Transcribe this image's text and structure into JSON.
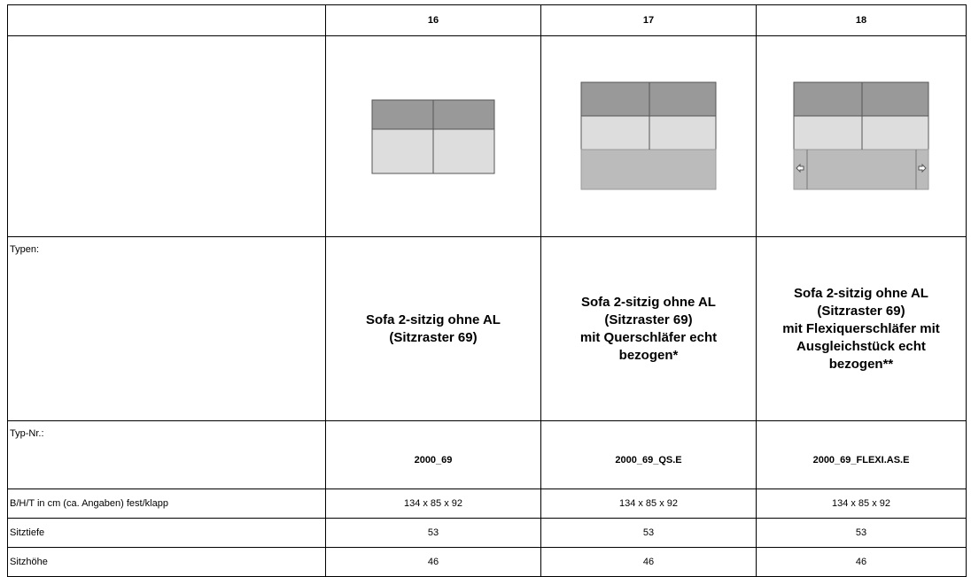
{
  "table": {
    "columns": [
      "16",
      "17",
      "18"
    ],
    "types_label": "Typen:",
    "types": [
      [
        "Sofa 2-sitzig ohne AL",
        "(Sitzraster 69)"
      ],
      [
        "Sofa 2-sitzig ohne AL",
        "(Sitzraster 69)",
        "mit Querschläfer echt",
        "bezogen*"
      ],
      [
        "Sofa 2-sitzig ohne AL",
        "(Sitzraster 69)",
        "mit Flexiquerschläfer mit",
        "Ausgleichstück echt",
        "bezogen**"
      ]
    ],
    "typnr_label": "Typ-Nr.:",
    "typnr": [
      "2000_69",
      "2000_69_QS.E",
      "2000_69_FLEXI.AS.E"
    ],
    "rows": [
      {
        "label": "B/H/T in cm (ca. Angaben) fest/klapp",
        "values": [
          "134 x 85 x 92",
          "134 x 85 x 92",
          "134 x 85 x 92"
        ]
      },
      {
        "label": "Sitztiefe",
        "values": [
          "53",
          "53",
          "53"
        ]
      },
      {
        "label": "Sitzhöhe",
        "values": [
          "46",
          "46",
          "46"
        ]
      }
    ]
  }
}
